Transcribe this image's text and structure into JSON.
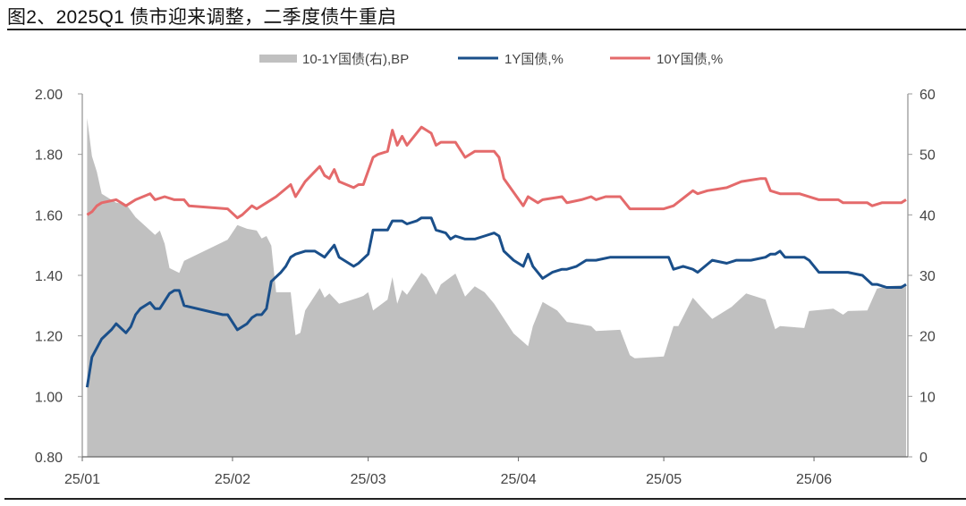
{
  "title": "图2、2025Q1 债市迎来调整，二季度债牛重启",
  "chart_data": {
    "type": "line",
    "title": "图2、2025Q1 债市迎来调整，二季度债牛重启",
    "xlim": [
      "2025-01-01",
      "2025-06-20"
    ],
    "x_ticks": [
      {
        "date": "2025-01-01",
        "label": "25/01"
      },
      {
        "date": "2025-02-01",
        "label": "25/02"
      },
      {
        "date": "2025-03-01",
        "label": "25/03"
      },
      {
        "date": "2025-04-01",
        "label": "25/04"
      },
      {
        "date": "2025-05-01",
        "label": "25/05"
      },
      {
        "date": "2025-06-01",
        "label": "25/06"
      }
    ],
    "y_left": {
      "lim": [
        0.8,
        2.0
      ],
      "ticks": [
        "0.80",
        "1.00",
        "1.20",
        "1.40",
        "1.60",
        "1.80",
        "2.00"
      ]
    },
    "y_right": {
      "lim": [
        0,
        60
      ],
      "ticks": [
        "0",
        "10",
        "20",
        "30",
        "40",
        "50",
        "60"
      ]
    },
    "grid": false,
    "legend_position": "top",
    "series": [
      {
        "name": "10-1Y国债(右),BP",
        "type": "area",
        "axis": "right",
        "color": "#c0c0c0",
        "points": [
          [
            "2025-01-02",
            56
          ],
          [
            "2025-01-03",
            49.7
          ],
          [
            "2025-01-04",
            47.1
          ],
          [
            "2025-01-05",
            43.5
          ],
          [
            "2025-01-08",
            42.0
          ],
          [
            "2025-01-10",
            41.8
          ],
          [
            "2025-01-12",
            39.6
          ],
          [
            "2025-01-16",
            36.7
          ],
          [
            "2025-01-17",
            37.4
          ],
          [
            "2025-01-18",
            35.2
          ],
          [
            "2025-01-19",
            31.2
          ],
          [
            "2025-01-21",
            30.4
          ],
          [
            "2025-01-22",
            32.4
          ],
          [
            "2025-01-31",
            35.9
          ],
          [
            "2025-02-02",
            38.3
          ],
          [
            "2025-02-04",
            37.7
          ],
          [
            "2025-02-06",
            37.4
          ],
          [
            "2025-02-07",
            36.1
          ],
          [
            "2025-02-08",
            36.5
          ],
          [
            "2025-02-09",
            34.9
          ],
          [
            "2025-02-10",
            27.2
          ],
          [
            "2025-02-13",
            27.2
          ],
          [
            "2025-02-14",
            20.1
          ],
          [
            "2025-02-15",
            20.5
          ],
          [
            "2025-02-16",
            24.2
          ],
          [
            "2025-02-19",
            27.9
          ],
          [
            "2025-02-20",
            26.3
          ],
          [
            "2025-02-21",
            27.0
          ],
          [
            "2025-02-23",
            25.3
          ],
          [
            "2025-02-27",
            26.3
          ],
          [
            "2025-02-28",
            26.6
          ],
          [
            "2025-03-01",
            27.2
          ],
          [
            "2025-03-02",
            24.2
          ],
          [
            "2025-03-05",
            26.0
          ],
          [
            "2025-03-06",
            29.7
          ],
          [
            "2025-03-07",
            25.3
          ],
          [
            "2025-03-08",
            27.6
          ],
          [
            "2025-03-09",
            26.8
          ],
          [
            "2025-03-12",
            30.4
          ],
          [
            "2025-03-13",
            29.7
          ],
          [
            "2025-03-15",
            26.8
          ],
          [
            "2025-03-16",
            28.5
          ],
          [
            "2025-03-19",
            30.3
          ],
          [
            "2025-03-21",
            26.5
          ],
          [
            "2025-03-23",
            28.2
          ],
          [
            "2025-03-25",
            27.2
          ],
          [
            "2025-03-27",
            25.3
          ],
          [
            "2025-03-31",
            20.4
          ],
          [
            "2025-04-03",
            18.3
          ],
          [
            "2025-04-04",
            21.6
          ],
          [
            "2025-04-06",
            25.6
          ],
          [
            "2025-04-09",
            24.2
          ],
          [
            "2025-04-11",
            22.3
          ],
          [
            "2025-04-14",
            21.9
          ],
          [
            "2025-04-16",
            21.6
          ],
          [
            "2025-04-17",
            20.8
          ],
          [
            "2025-04-22",
            21.0
          ],
          [
            "2025-04-24",
            16.8
          ],
          [
            "2025-04-25",
            16.3
          ],
          [
            "2025-05-01",
            16.6
          ],
          [
            "2025-05-03",
            21.6
          ],
          [
            "2025-05-04",
            21.6
          ],
          [
            "2025-05-07",
            26.3
          ],
          [
            "2025-05-09",
            24.5
          ],
          [
            "2025-05-11",
            22.8
          ],
          [
            "2025-05-15",
            24.8
          ],
          [
            "2025-05-18",
            27.0
          ],
          [
            "2025-05-22",
            26.0
          ],
          [
            "2025-05-24",
            21.1
          ],
          [
            "2025-05-25",
            21.6
          ],
          [
            "2025-05-30",
            21.3
          ],
          [
            "2025-05-31",
            24.1
          ],
          [
            "2025-06-05",
            24.5
          ],
          [
            "2025-06-07",
            23.5
          ],
          [
            "2025-06-08",
            24.1
          ],
          [
            "2025-06-12",
            24.2
          ],
          [
            "2025-06-14",
            27.8
          ],
          [
            "2025-06-16",
            28.2
          ],
          [
            "2025-06-20",
            28.4
          ]
        ]
      },
      {
        "name": "1Y国债,%",
        "type": "line",
        "axis": "left",
        "color": "#1a4f8a",
        "points": [
          [
            "2025-01-02",
            1.03
          ],
          [
            "2025-01-03",
            1.13
          ],
          [
            "2025-01-05",
            1.19
          ],
          [
            "2025-01-07",
            1.22
          ],
          [
            "2025-01-08",
            1.24
          ],
          [
            "2025-01-10",
            1.21
          ],
          [
            "2025-01-11",
            1.23
          ],
          [
            "2025-01-12",
            1.27
          ],
          [
            "2025-01-13",
            1.29
          ],
          [
            "2025-01-15",
            1.31
          ],
          [
            "2025-01-16",
            1.29
          ],
          [
            "2025-01-17",
            1.29
          ],
          [
            "2025-01-19",
            1.34
          ],
          [
            "2025-01-20",
            1.35
          ],
          [
            "2025-01-21",
            1.35
          ],
          [
            "2025-01-22",
            1.3
          ],
          [
            "2025-01-30",
            1.27
          ],
          [
            "2025-01-31",
            1.27
          ],
          [
            "2025-02-02",
            1.22
          ],
          [
            "2025-02-03",
            1.23
          ],
          [
            "2025-02-04",
            1.24
          ],
          [
            "2025-02-05",
            1.26
          ],
          [
            "2025-02-06",
            1.27
          ],
          [
            "2025-02-07",
            1.27
          ],
          [
            "2025-02-08",
            1.29
          ],
          [
            "2025-02-09",
            1.38
          ],
          [
            "2025-02-11",
            1.41
          ],
          [
            "2025-02-12",
            1.43
          ],
          [
            "2025-02-13",
            1.46
          ],
          [
            "2025-02-14",
            1.47
          ],
          [
            "2025-02-16",
            1.48
          ],
          [
            "2025-02-18",
            1.48
          ],
          [
            "2025-02-20",
            1.46
          ],
          [
            "2025-02-22",
            1.5
          ],
          [
            "2025-02-23",
            1.46
          ],
          [
            "2025-02-24",
            1.45
          ],
          [
            "2025-02-26",
            1.43
          ],
          [
            "2025-02-27",
            1.44
          ],
          [
            "2025-03-01",
            1.47
          ],
          [
            "2025-03-02",
            1.55
          ],
          [
            "2025-03-04",
            1.55
          ],
          [
            "2025-03-05",
            1.55
          ],
          [
            "2025-03-06",
            1.58
          ],
          [
            "2025-03-08",
            1.58
          ],
          [
            "2025-03-09",
            1.57
          ],
          [
            "2025-03-11",
            1.58
          ],
          [
            "2025-03-12",
            1.59
          ],
          [
            "2025-03-14",
            1.59
          ],
          [
            "2025-03-15",
            1.55
          ],
          [
            "2025-03-17",
            1.54
          ],
          [
            "2025-03-18",
            1.52
          ],
          [
            "2025-03-19",
            1.53
          ],
          [
            "2025-03-21",
            1.52
          ],
          [
            "2025-03-23",
            1.52
          ],
          [
            "2025-03-25",
            1.53
          ],
          [
            "2025-03-27",
            1.54
          ],
          [
            "2025-03-28",
            1.53
          ],
          [
            "2025-03-29",
            1.48
          ],
          [
            "2025-03-31",
            1.45
          ],
          [
            "2025-04-02",
            1.43
          ],
          [
            "2025-04-03",
            1.47
          ],
          [
            "2025-04-04",
            1.43
          ],
          [
            "2025-04-06",
            1.39
          ],
          [
            "2025-04-08",
            1.41
          ],
          [
            "2025-04-10",
            1.42
          ],
          [
            "2025-04-11",
            1.42
          ],
          [
            "2025-04-13",
            1.43
          ],
          [
            "2025-04-15",
            1.45
          ],
          [
            "2025-04-17",
            1.45
          ],
          [
            "2025-04-20",
            1.46
          ],
          [
            "2025-04-24",
            1.46
          ],
          [
            "2025-04-30",
            1.46
          ],
          [
            "2025-05-02",
            1.46
          ],
          [
            "2025-05-03",
            1.42
          ],
          [
            "2025-05-05",
            1.43
          ],
          [
            "2025-05-07",
            1.42
          ],
          [
            "2025-05-08",
            1.41
          ],
          [
            "2025-05-11",
            1.45
          ],
          [
            "2025-05-14",
            1.44
          ],
          [
            "2025-05-16",
            1.45
          ],
          [
            "2025-05-19",
            1.45
          ],
          [
            "2025-05-22",
            1.46
          ],
          [
            "2025-05-23",
            1.47
          ],
          [
            "2025-05-24",
            1.47
          ],
          [
            "2025-05-25",
            1.48
          ],
          [
            "2025-05-26",
            1.46
          ],
          [
            "2025-05-29",
            1.46
          ],
          [
            "2025-05-30",
            1.46
          ],
          [
            "2025-05-31",
            1.45
          ],
          [
            "2025-06-02",
            1.41
          ],
          [
            "2025-06-05",
            1.41
          ],
          [
            "2025-06-08",
            1.41
          ],
          [
            "2025-06-11",
            1.4
          ],
          [
            "2025-06-13",
            1.37
          ],
          [
            "2025-06-14",
            1.37
          ],
          [
            "2025-06-16",
            1.36
          ],
          [
            "2025-06-19",
            1.36
          ],
          [
            "2025-06-20",
            1.37
          ]
        ]
      },
      {
        "name": "10Y国债,%",
        "type": "line",
        "axis": "left",
        "color": "#e46a6b",
        "points": [
          [
            "2025-01-02",
            1.6
          ],
          [
            "2025-01-03",
            1.61
          ],
          [
            "2025-01-04",
            1.63
          ],
          [
            "2025-01-05",
            1.64
          ],
          [
            "2025-01-08",
            1.65
          ],
          [
            "2025-01-10",
            1.63
          ],
          [
            "2025-01-12",
            1.65
          ],
          [
            "2025-01-15",
            1.67
          ],
          [
            "2025-01-16",
            1.65
          ],
          [
            "2025-01-18",
            1.66
          ],
          [
            "2025-01-20",
            1.65
          ],
          [
            "2025-01-22",
            1.65
          ],
          [
            "2025-01-23",
            1.63
          ],
          [
            "2025-01-31",
            1.62
          ],
          [
            "2025-02-02",
            1.59
          ],
          [
            "2025-02-03",
            1.6
          ],
          [
            "2025-02-05",
            1.63
          ],
          [
            "2025-02-06",
            1.62
          ],
          [
            "2025-02-08",
            1.64
          ],
          [
            "2025-02-10",
            1.66
          ],
          [
            "2025-02-13",
            1.7
          ],
          [
            "2025-02-14",
            1.66
          ],
          [
            "2025-02-16",
            1.71
          ],
          [
            "2025-02-19",
            1.76
          ],
          [
            "2025-02-20",
            1.73
          ],
          [
            "2025-02-21",
            1.72
          ],
          [
            "2025-02-22",
            1.75
          ],
          [
            "2025-02-23",
            1.71
          ],
          [
            "2025-02-26",
            1.69
          ],
          [
            "2025-02-27",
            1.7
          ],
          [
            "2025-02-28",
            1.7
          ],
          [
            "2025-03-02",
            1.79
          ],
          [
            "2025-03-03",
            1.8
          ],
          [
            "2025-03-05",
            1.81
          ],
          [
            "2025-03-06",
            1.88
          ],
          [
            "2025-03-07",
            1.83
          ],
          [
            "2025-03-08",
            1.86
          ],
          [
            "2025-03-09",
            1.83
          ],
          [
            "2025-03-12",
            1.89
          ],
          [
            "2025-03-13",
            1.88
          ],
          [
            "2025-03-14",
            1.87
          ],
          [
            "2025-03-15",
            1.83
          ],
          [
            "2025-03-16",
            1.84
          ],
          [
            "2025-03-19",
            1.84
          ],
          [
            "2025-03-21",
            1.79
          ],
          [
            "2025-03-23",
            1.81
          ],
          [
            "2025-03-27",
            1.81
          ],
          [
            "2025-03-28",
            1.79
          ],
          [
            "2025-03-29",
            1.72
          ],
          [
            "2025-04-02",
            1.63
          ],
          [
            "2025-04-03",
            1.66
          ],
          [
            "2025-04-05",
            1.64
          ],
          [
            "2025-04-06",
            1.65
          ],
          [
            "2025-04-10",
            1.66
          ],
          [
            "2025-04-11",
            1.64
          ],
          [
            "2025-04-14",
            1.65
          ],
          [
            "2025-04-16",
            1.66
          ],
          [
            "2025-04-17",
            1.65
          ],
          [
            "2025-04-19",
            1.66
          ],
          [
            "2025-04-22",
            1.66
          ],
          [
            "2025-04-24",
            1.62
          ],
          [
            "2025-05-01",
            1.62
          ],
          [
            "2025-05-03",
            1.63
          ],
          [
            "2025-05-07",
            1.68
          ],
          [
            "2025-05-08",
            1.67
          ],
          [
            "2025-05-10",
            1.68
          ],
          [
            "2025-05-14",
            1.69
          ],
          [
            "2025-05-17",
            1.71
          ],
          [
            "2025-05-21",
            1.72
          ],
          [
            "2025-05-22",
            1.72
          ],
          [
            "2025-05-23",
            1.68
          ],
          [
            "2025-05-25",
            1.67
          ],
          [
            "2025-05-29",
            1.67
          ],
          [
            "2025-06-02",
            1.65
          ],
          [
            "2025-06-06",
            1.65
          ],
          [
            "2025-06-07",
            1.64
          ],
          [
            "2025-06-12",
            1.64
          ],
          [
            "2025-06-13",
            1.63
          ],
          [
            "2025-06-15",
            1.64
          ],
          [
            "2025-06-19",
            1.64
          ],
          [
            "2025-06-20",
            1.65
          ]
        ]
      }
    ]
  }
}
